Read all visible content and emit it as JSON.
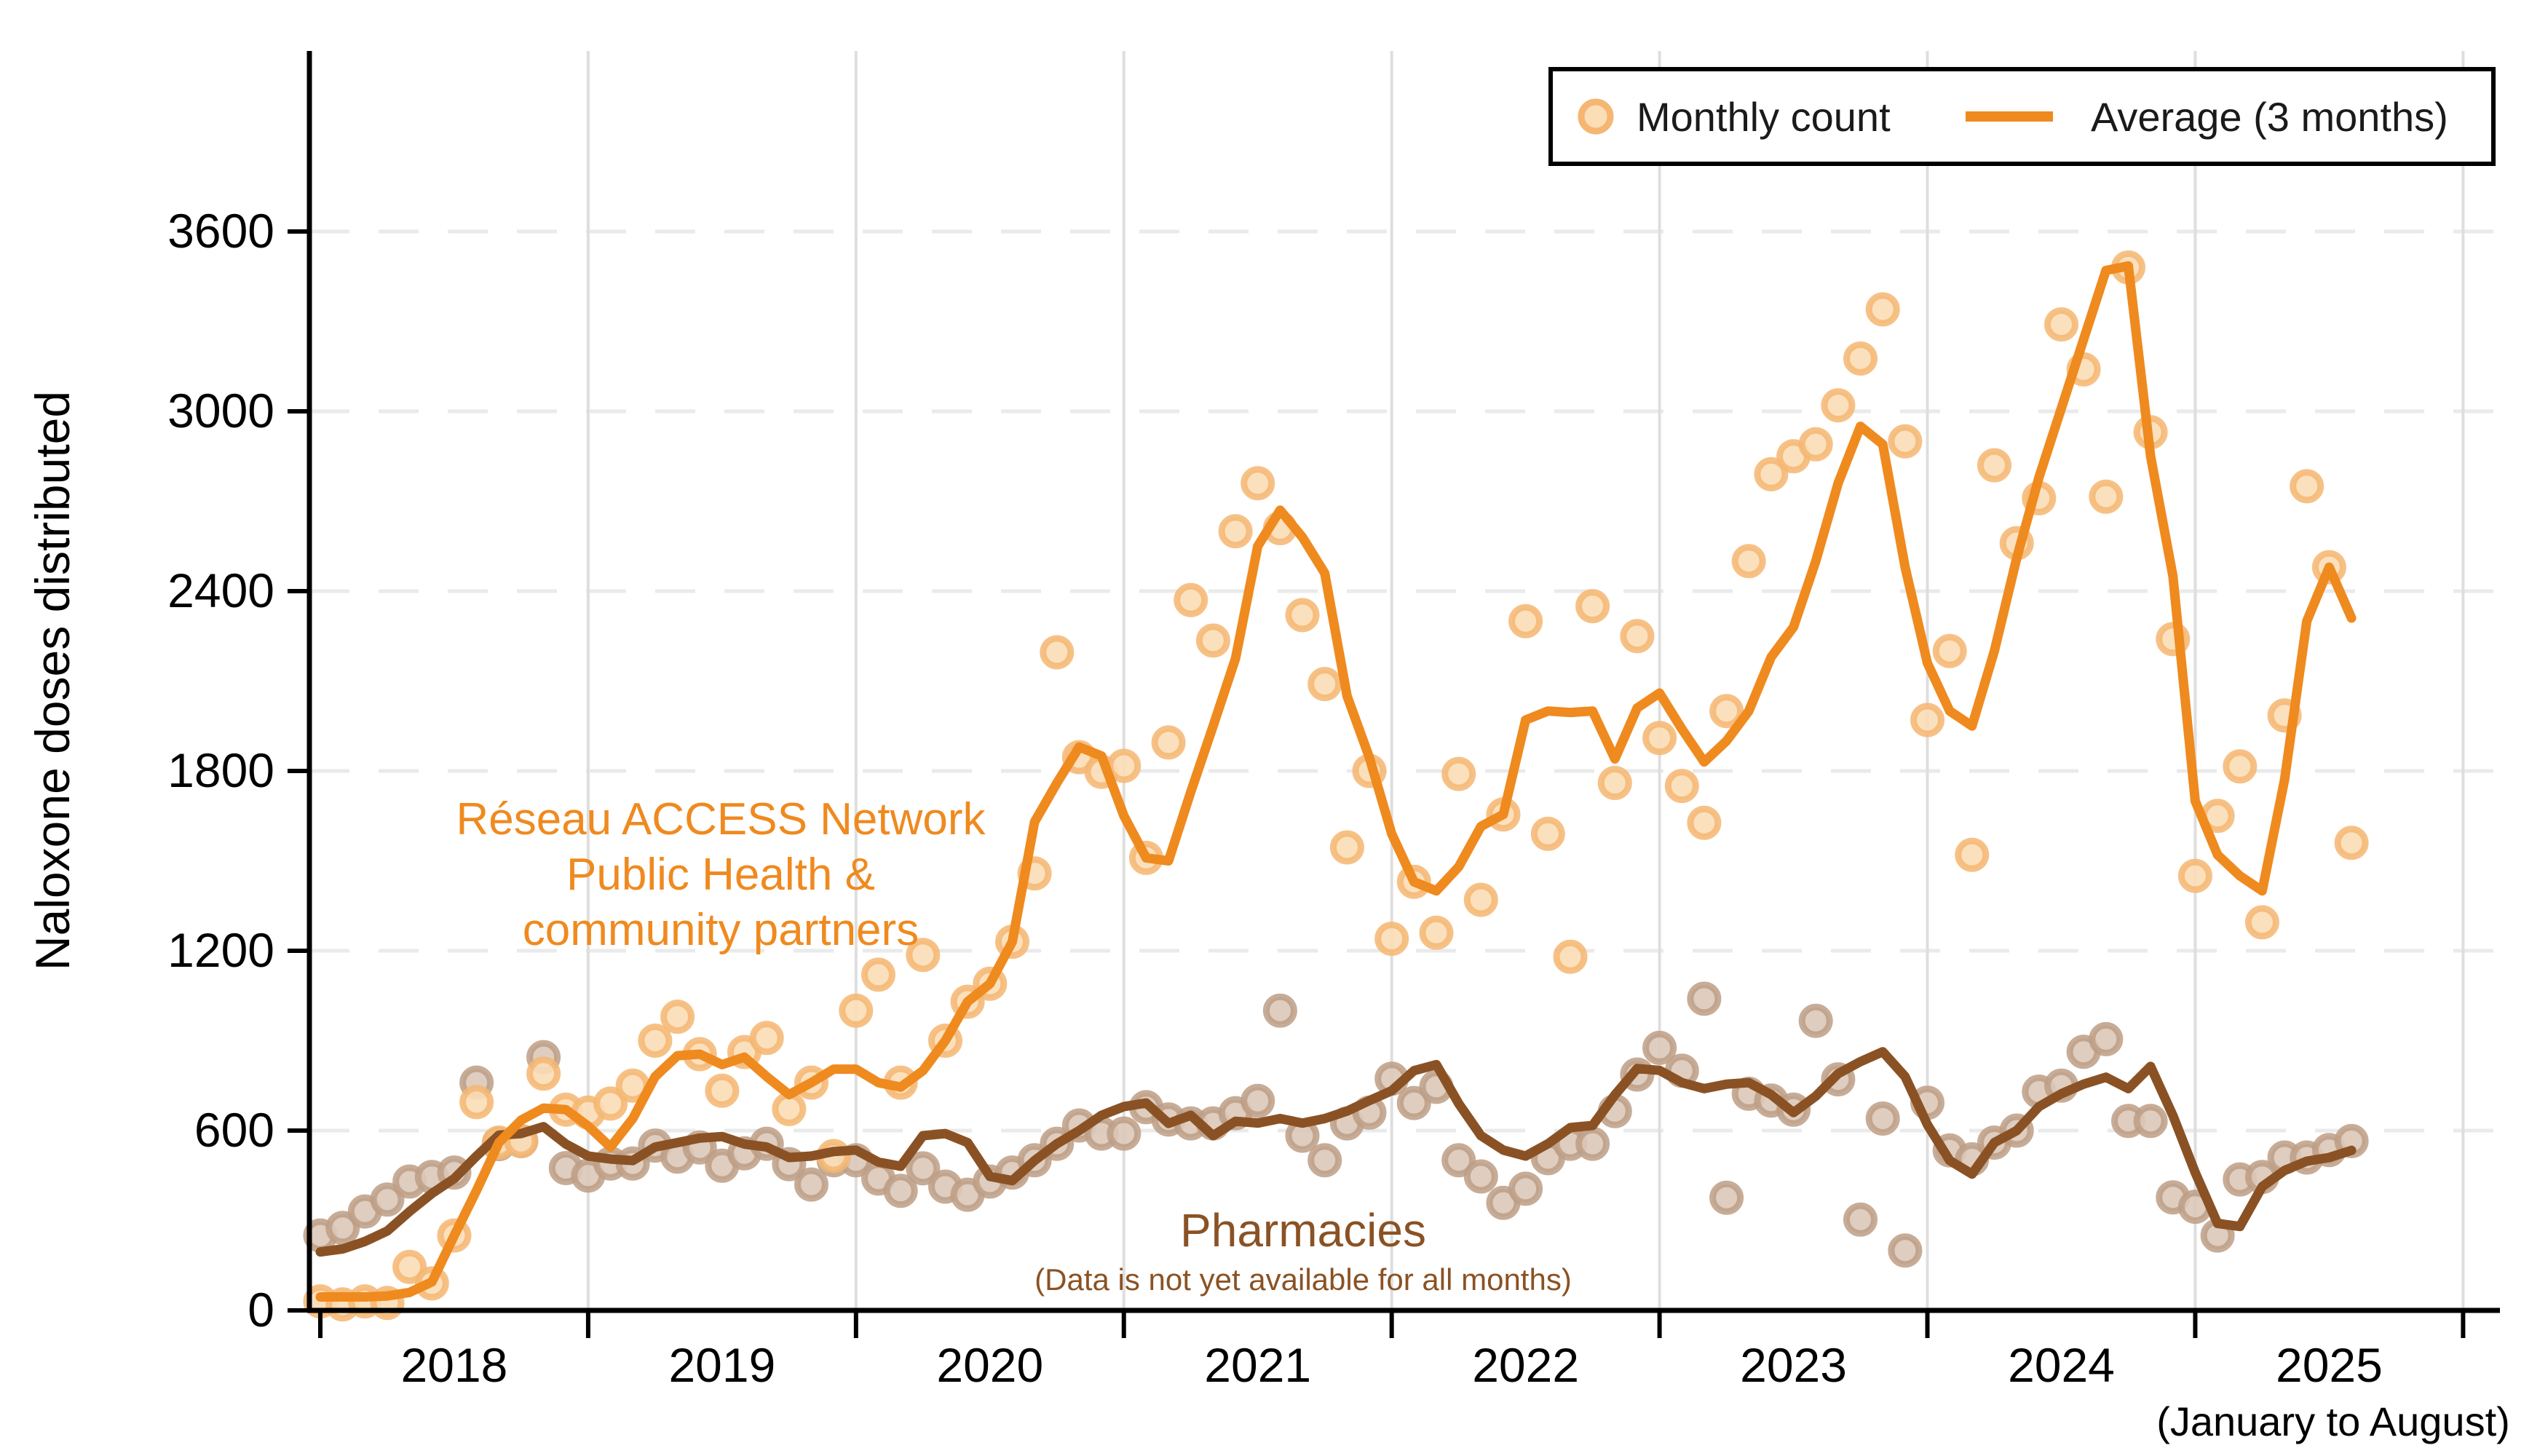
{
  "colors": {
    "orange_line": "#EF8A1F",
    "orange_dot_fill": "#FBDDB6",
    "orange_dot_stroke": "#F5B672",
    "brown_line": "#8A5224",
    "brown_dot_fill": "#DCC8B8",
    "brown_dot_stroke": "#BD9D85",
    "axis": "#000000",
    "grid_vertical": "#DEDEDE",
    "grid_dashed": "#EAEAEA",
    "legend_text": "#1a1a1a",
    "background": "#FFFFFF"
  },
  "legend": {
    "monthly_label": "Monthly count",
    "average_label": "Average (3 months)"
  },
  "ylabel": "Naloxone doses distributed",
  "x_note": "(January to August)",
  "annotations": {
    "orange_series_label_line1": "Réseau ACCESS Network",
    "orange_series_label_line2": "Public Health &",
    "orange_series_label_line3": "community partners",
    "brown_series_label": "Pharmacies",
    "brown_series_note": "(Data is not yet available for all months)"
  },
  "chart_data": {
    "type": "line",
    "subtype": "scatter-with-moving-average",
    "start_month": "2018-01",
    "end_month": "2025-08",
    "n_months": 92,
    "year_ticks": [
      2018,
      2019,
      2020,
      2021,
      2022,
      2023,
      2024,
      2025,
      2026
    ],
    "year_labels": [
      "2018",
      "2019",
      "2020",
      "2021",
      "2022",
      "2023",
      "2024",
      "2025"
    ],
    "y_ticks": [
      0,
      600,
      1200,
      1800,
      2400,
      3000,
      3600
    ],
    "ylim": [
      0,
      3900
    ],
    "grid": "horizontal-dashed-and-vertical-year-lines",
    "legend_position": "top-right",
    "series": [
      {
        "name": "Réseau ACCESS Network Public Health & community partners — monthly count",
        "style": "dots-orange",
        "values": [
          30,
          20,
          30,
          25,
          145,
          90,
          250,
          695,
          560,
          565,
          790,
          670,
          660,
          690,
          750,
          900,
          980,
          855,
          733,
          862,
          909,
          672,
          760,
          515,
          1000,
          1120,
          760,
          1186,
          900,
          1030,
          1090,
          1230,
          1458,
          2196,
          1846,
          1797,
          1817,
          1510,
          1895,
          2370,
          2235,
          2600,
          2760,
          2610,
          2320,
          2090,
          1545,
          1800,
          1240,
          1430,
          1260,
          1790,
          1370,
          1655,
          2300,
          1590,
          1180,
          2350,
          1760,
          2250,
          1910,
          1750,
          1627,
          2000,
          2500,
          2790,
          2850,
          2890,
          3020,
          3176,
          3340,
          2900,
          1970,
          2200,
          1520,
          2820,
          2560,
          2710,
          3290,
          3140,
          2715,
          3480,
          2930,
          2240,
          1450,
          1650,
          1815,
          1295,
          1985,
          2750,
          2480,
          1560
        ]
      },
      {
        "name": "Réseau ACCESS Network Public Health & community partners — 3-month average",
        "style": "line-orange",
        "values": [
          45,
          45,
          45,
          48,
          60,
          95,
          250,
          400,
          560,
          635,
          675,
          670,
          615,
          545,
          640,
          780,
          850,
          855,
          820,
          845,
          780,
          720,
          760,
          805,
          805,
          760,
          745,
          800,
          900,
          1030,
          1090,
          1230,
          1630,
          1760,
          1880,
          1850,
          1650,
          1510,
          1500,
          1730,
          1950,
          2175,
          2550,
          2670,
          2580,
          2460,
          2050,
          1845,
          1590,
          1430,
          1400,
          1480,
          1615,
          1655,
          1970,
          2000,
          1995,
          2000,
          1840,
          2010,
          2060,
          1940,
          1830,
          1900,
          2000,
          2180,
          2280,
          2500,
          2760,
          2950,
          2890,
          2480,
          2160,
          2000,
          1950,
          2200,
          2510,
          2780,
          3010,
          3240,
          3470,
          3485,
          2850,
          2450,
          1700,
          1520,
          1450,
          1400,
          1770,
          2300,
          2480,
          2310
        ]
      },
      {
        "name": "Pharmacies — monthly count",
        "style": "dots-brown",
        "values": [
          250,
          275,
          330,
          370,
          430,
          445,
          460,
          760,
          555,
          565,
          845,
          475,
          450,
          490,
          490,
          550,
          513,
          544,
          483,
          524,
          556,
          488,
          420,
          501,
          501,
          440,
          399,
          474,
          413,
          386,
          430,
          460,
          501,
          556,
          617,
          590,
          590,
          678,
          637,
          624,
          624,
          658,
          699,
          1000,
          583,
          501,
          624,
          660,
          773,
          692,
          746,
          501,
          447,
          359,
          406,
          508,
          556,
          556,
          665,
          787,
          876,
          800,
          1040,
          376,
          723,
          700,
          670,
          966,
          771,
          303,
          640,
          200,
          693,
          534,
          504,
          560,
          600,
          730,
          750,
          863,
          905,
          632,
          632,
          377,
          346,
          250,
          437,
          445,
          510,
          510,
          535,
          565
        ]
      },
      {
        "name": "Pharmacies — 3-month average",
        "style": "line-brown",
        "values": [
          195,
          205,
          230,
          265,
          330,
          390,
          440,
          515,
          585,
          590,
          613,
          555,
          515,
          505,
          500,
          545,
          560,
          575,
          580,
          555,
          545,
          510,
          515,
          530,
          535,
          495,
          481,
          583,
          590,
          560,
          447,
          433,
          500,
          556,
          600,
          651,
          680,
          692,
          624,
          651,
          583,
          631,
          625,
          640,
          625,
          640,
          665,
          700,
          733,
          800,
          820,
          690,
          583,
          535,
          515,
          556,
          610,
          617,
          719,
          807,
          801,
          760,
          740,
          755,
          760,
          720,
          660,
          715,
          790,
          830,
          863,
          780,
          620,
          500,
          455,
          560,
          600,
          680,
          723,
          755,
          778,
          740,
          814,
          650,
          460,
          290,
          280,
          413,
          467,
          498,
          510,
          534
        ]
      }
    ]
  }
}
